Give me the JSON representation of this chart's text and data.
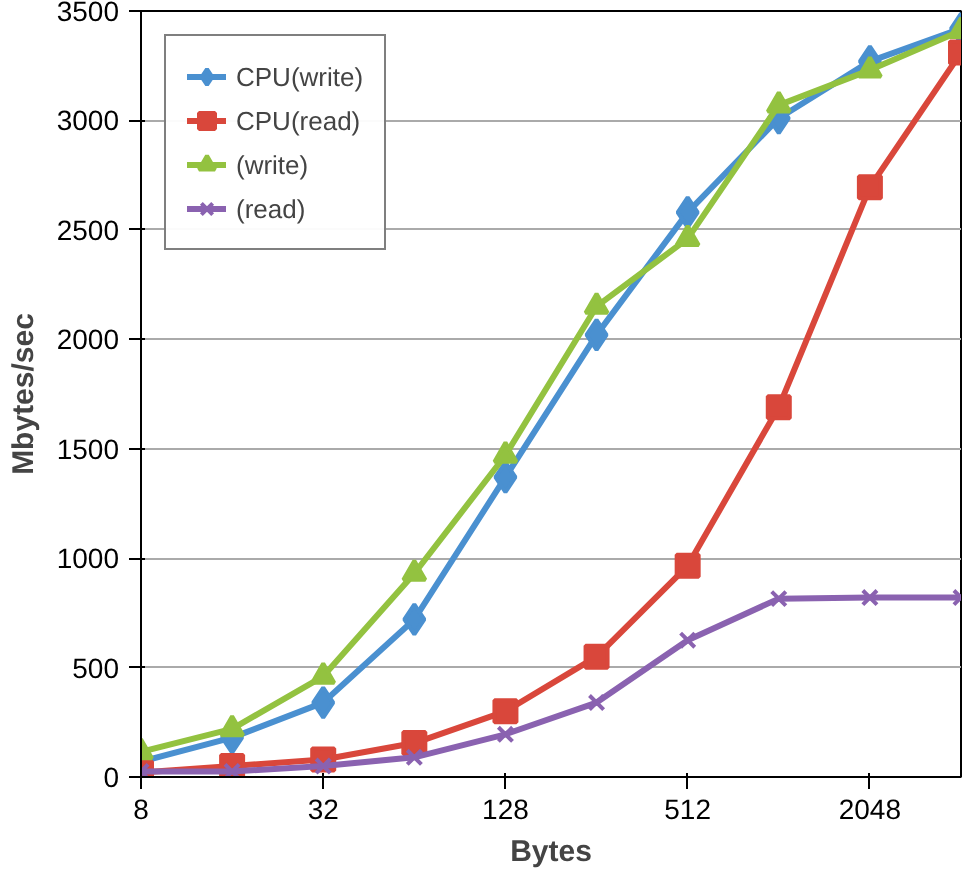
{
  "chart_data": {
    "type": "line",
    "xlabel": "Bytes",
    "ylabel": "Mbytes/sec",
    "x": [
      8,
      16,
      32,
      64,
      128,
      256,
      512,
      1024,
      2048,
      4096
    ],
    "log": "x",
    "xlim": [
      8,
      4096
    ],
    "xticks": [
      8,
      32,
      128,
      512,
      2048
    ],
    "ylim": [
      0,
      3500
    ],
    "yticks": [
      0,
      500,
      1000,
      1500,
      2000,
      2500,
      3000,
      3500
    ],
    "grid": "y",
    "legend": "top left",
    "series": [
      {
        "name": "CPU(write)",
        "color": "#4a90d0",
        "marker": "diamond",
        "values": [
          70,
          180,
          340,
          720,
          1370,
          2020,
          2580,
          3010,
          3270,
          3420
        ]
      },
      {
        "name": "CPU(read)",
        "color": "#d9473b",
        "marker": "square",
        "values": [
          20,
          50,
          80,
          155,
          300,
          550,
          965,
          1690,
          2695,
          3310
        ]
      },
      {
        "name": "(write)",
        "color": "#93c240",
        "marker": "triangle",
        "values": [
          115,
          220,
          460,
          930,
          1470,
          2150,
          2460,
          3070,
          3230,
          3410
        ]
      },
      {
        "name": "(read)",
        "color": "#8a62b0",
        "marker": "cross",
        "values": [
          25,
          25,
          50,
          90,
          195,
          340,
          625,
          815,
          820,
          820
        ]
      }
    ]
  }
}
